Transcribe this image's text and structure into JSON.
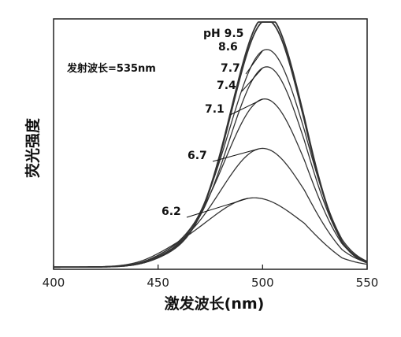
{
  "chart_data": {
    "type": "line",
    "title": "",
    "xlabel": "激发波长(nm)",
    "ylabel": "荧光强度",
    "xlim": [
      400,
      550
    ],
    "ylim": [
      0,
      1.0
    ],
    "x_ticks": [
      400,
      450,
      500,
      550
    ],
    "y_ticks": [],
    "grid": false,
    "legend": "none",
    "annotation": "发射波长=535nm",
    "series": [
      {
        "name": "pH 9.5",
        "peak": 0.97,
        "peak_x": 502,
        "width": 17
      },
      {
        "name": "8.6",
        "peak": 0.95,
        "peak_x": 502,
        "width": 17
      },
      {
        "name": "7.7",
        "peak": 0.83,
        "peak_x": 502,
        "width": 18
      },
      {
        "name": "7.4",
        "peak": 0.76,
        "peak_x": 502,
        "width": 18
      },
      {
        "name": "7.1",
        "peak": 0.63,
        "peak_x": 501,
        "width": 19
      },
      {
        "name": "6.7",
        "peak": 0.43,
        "peak_x": 500,
        "width": 20
      },
      {
        "name": "6.2",
        "peak": 0.23,
        "peak_x": 496,
        "width": 22
      }
    ],
    "colors": {
      "line": "#333333",
      "axis": "#222222"
    }
  }
}
